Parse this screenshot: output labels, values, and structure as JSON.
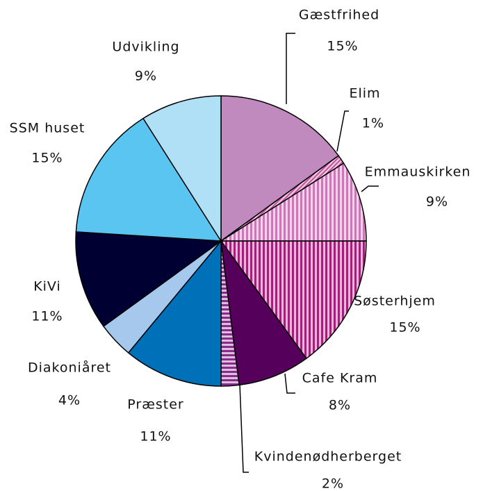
{
  "chart_data": {
    "type": "pie",
    "categories": [
      "Gæstfrihed",
      "Elim",
      "Emmauskirken",
      "Søsterhjem",
      "Cafe Kram",
      "Kvindenødherberget",
      "Præster",
      "Diakoniåret",
      "KiVi",
      "SSM huset",
      "Udvikling"
    ],
    "values": [
      15,
      1,
      9,
      15,
      8,
      2,
      11,
      4,
      11,
      15,
      9
    ],
    "value_labels": [
      "15%",
      "1%",
      "9%",
      "15%",
      "8%",
      "2%",
      "11%",
      "4%",
      "11%",
      "15%",
      "9%"
    ],
    "colors": [
      "#c08abf",
      "#c0509a",
      "#c878b4",
      "#a0207a",
      "#55005a",
      "#8a2a8c",
      "#0070b8",
      "#a6c8ec",
      "#000033",
      "#5bc5f2",
      "#b0e0f5"
    ],
    "patterns": [
      null,
      "diagonal",
      "vertical",
      "vertical",
      null,
      "horizontal",
      null,
      null,
      null,
      null,
      null
    ]
  }
}
